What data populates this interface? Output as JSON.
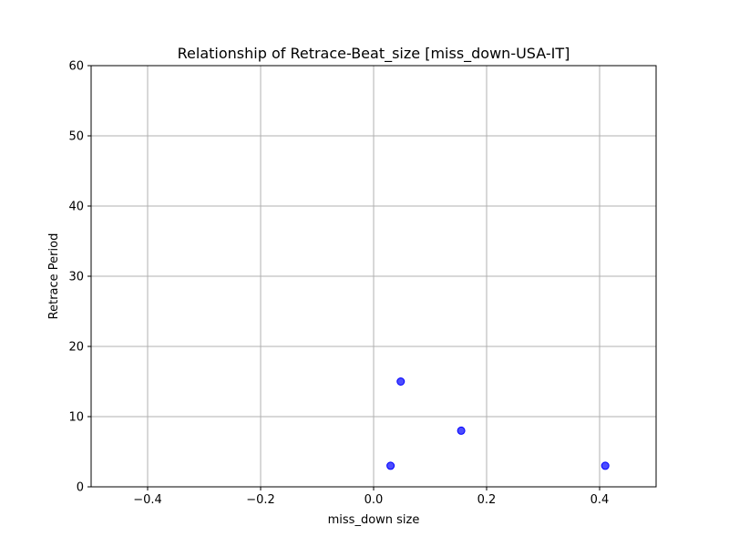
{
  "chart_data": {
    "type": "scatter",
    "title": "Relationship of Retrace-Beat_size [miss_down-USA-IT]",
    "xlabel": "miss_down size",
    "ylabel": "Retrace Period",
    "xlim": [
      -0.5,
      0.5
    ],
    "ylim": [
      0,
      60
    ],
    "x_ticks": [
      -0.4,
      -0.2,
      0.0,
      0.2,
      0.4
    ],
    "x_tick_labels": [
      "−0.4",
      "−0.2",
      "0.0",
      "0.2",
      "0.4"
    ],
    "y_ticks": [
      0,
      10,
      20,
      30,
      40,
      50,
      60
    ],
    "y_tick_labels": [
      "0",
      "10",
      "20",
      "30",
      "40",
      "50",
      "60"
    ],
    "grid": true,
    "marker_color": "#0000ff",
    "marker_alpha": 0.7,
    "series": [
      {
        "points": [
          {
            "x": 0.03,
            "y": 3
          },
          {
            "x": 0.048,
            "y": 15
          },
          {
            "x": 0.155,
            "y": 8
          },
          {
            "x": 0.41,
            "y": 3
          }
        ]
      }
    ]
  }
}
